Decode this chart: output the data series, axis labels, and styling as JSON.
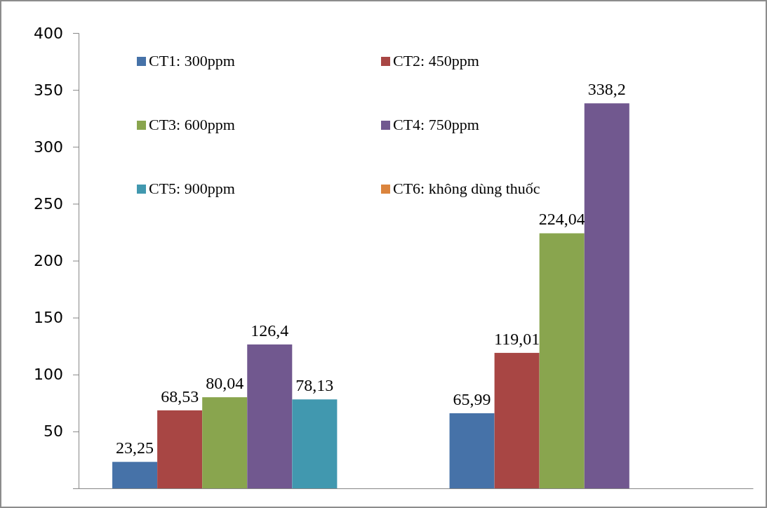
{
  "chart_data": {
    "type": "bar",
    "categories": [
      null,
      null
    ],
    "series": [
      {
        "name": "CT1: 300ppm",
        "color": "#4672a8",
        "values": [
          23.25,
          65.99
        ],
        "value_labels": [
          "23,25",
          "65,99"
        ]
      },
      {
        "name": "CT2: 450ppm",
        "color": "#a84644",
        "values": [
          68.53,
          119.01
        ],
        "value_labels": [
          "68,53",
          "119,01"
        ]
      },
      {
        "name": "CT3: 600ppm",
        "color": "#89a54e",
        "values": [
          80.04,
          224.04
        ],
        "value_labels": [
          "80,04",
          "224,04"
        ]
      },
      {
        "name": "CT4: 750ppm",
        "color": "#71588f",
        "values": [
          126.4,
          338.2
        ],
        "value_labels": [
          "126,4",
          "338,2"
        ]
      },
      {
        "name": "CT5: 900ppm",
        "color": "#4198af",
        "values": [
          78.13,
          null
        ],
        "value_labels": [
          "78,13",
          null
        ]
      },
      {
        "name": "CT6: không dùng thuốc",
        "color": "#db843d",
        "values": [
          null,
          null
        ],
        "value_labels": [
          null,
          null
        ]
      }
    ],
    "ylim": [
      0,
      400
    ],
    "yticks": [
      50,
      100,
      150,
      200,
      250,
      300,
      350,
      400
    ],
    "legend": "top left"
  }
}
